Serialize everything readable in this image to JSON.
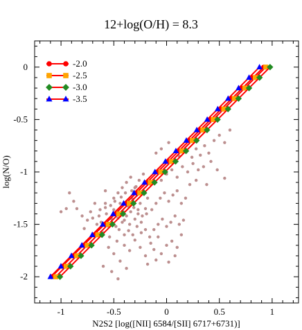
{
  "chart_data": {
    "type": "scatter",
    "title": "12+log(O/H) = 8.3",
    "xlabel": "N2S2 [log([NII] 6584/[SII] 6717+6731)]",
    "ylabel": "log(N/O)",
    "xlim": [
      -1.25,
      1.25
    ],
    "ylim": [
      -2.25,
      0.25
    ],
    "grid": false,
    "legend_position": "top-left",
    "x_ticks": [
      -1,
      -0.5,
      0,
      0.5,
      1
    ],
    "x_tick_labels": [
      "-1",
      "-0.5",
      "0",
      "0.5",
      "1"
    ],
    "y_ticks": [
      0,
      -0.5,
      -1,
      -1.5,
      -2
    ],
    "y_tick_labels": [
      "0",
      "-0.5",
      "-1",
      "-1.5",
      "-2"
    ],
    "colors": {
      "line": "#ff0000",
      "points": "#bc8f8f"
    },
    "model_y": [
      -2.0,
      -1.9,
      -1.8,
      -1.7,
      -1.6,
      -1.5,
      -1.4,
      -1.3,
      -1.2,
      -1.1,
      -1.0,
      -0.9,
      -0.8,
      -0.7,
      -0.6,
      -0.5,
      -0.4,
      -0.3,
      -0.2,
      -0.1,
      0.0
    ],
    "series": [
      {
        "name": "-2.0",
        "marker": "circle",
        "color": "#ff0000",
        "x_start": -1.09,
        "x_end": 0.92
      },
      {
        "name": "-2.5",
        "marker": "square",
        "color": "#ffa500",
        "x_start": -1.05,
        "x_end": 0.94
      },
      {
        "name": "-3.0",
        "marker": "diamond",
        "color": "#228b22",
        "x_start": -1.01,
        "x_end": 0.98
      },
      {
        "name": "-3.5",
        "marker": "triangle",
        "color": "#0000ff",
        "x_start": -1.1,
        "x_end": 0.88
      }
    ],
    "observations": {
      "name": "",
      "color": "#bc8f8f",
      "points": [
        [
          -0.62,
          -1.48
        ],
        [
          -0.55,
          -1.52
        ],
        [
          -0.48,
          -1.4
        ],
        [
          -0.41,
          -1.38
        ],
        [
          -0.58,
          -1.3
        ],
        [
          -0.52,
          -1.45
        ],
        [
          -0.45,
          -1.55
        ],
        [
          -0.38,
          -1.42
        ],
        [
          -0.6,
          -1.58
        ],
        [
          -0.66,
          -1.5
        ],
        [
          -0.7,
          -1.44
        ],
        [
          -0.5,
          -1.36
        ],
        [
          -0.44,
          -1.3
        ],
        [
          -0.36,
          -1.33
        ],
        [
          -0.32,
          -1.26
        ],
        [
          -0.28,
          -1.22
        ],
        [
          -0.25,
          -1.3
        ],
        [
          -0.22,
          -1.18
        ],
        [
          -0.18,
          -1.25
        ],
        [
          -0.15,
          -1.12
        ],
        [
          -0.54,
          -1.62
        ],
        [
          -0.47,
          -1.66
        ],
        [
          -0.4,
          -1.6
        ],
        [
          -0.35,
          -1.5
        ],
        [
          -0.3,
          -1.45
        ],
        [
          -0.27,
          -1.4
        ],
        [
          -0.24,
          -1.48
        ],
        [
          -0.2,
          -1.35
        ],
        [
          -0.57,
          -1.4
        ],
        [
          -0.63,
          -1.36
        ],
        [
          -0.68,
          -1.3
        ],
        [
          -0.72,
          -1.38
        ],
        [
          -0.75,
          -1.46
        ],
        [
          -0.78,
          -1.54
        ],
        [
          -0.8,
          -1.42
        ],
        [
          -0.85,
          -1.35
        ],
        [
          -0.88,
          -1.28
        ],
        [
          -0.92,
          -1.2
        ],
        [
          -0.95,
          -1.35
        ],
        [
          -1.0,
          -1.38
        ],
        [
          -0.5,
          -1.25
        ],
        [
          -0.46,
          -1.2
        ],
        [
          -0.42,
          -1.15
        ],
        [
          -0.38,
          -1.1
        ],
        [
          -0.34,
          -1.05
        ],
        [
          -0.3,
          -1.15
        ],
        [
          -0.26,
          -1.08
        ],
        [
          -0.22,
          -1.02
        ],
        [
          -0.55,
          -1.72
        ],
        [
          -0.5,
          -1.78
        ],
        [
          -0.44,
          -1.85
        ],
        [
          -0.4,
          -1.7
        ],
        [
          -0.35,
          -1.75
        ],
        [
          -0.3,
          -1.65
        ],
        [
          -0.25,
          -1.72
        ],
        [
          -0.2,
          -1.8
        ],
        [
          -0.15,
          -1.68
        ],
        [
          -0.12,
          -1.74
        ],
        [
          -0.08,
          -1.62
        ],
        [
          -0.05,
          -1.78
        ],
        [
          0.0,
          -1.7
        ],
        [
          0.05,
          -1.66
        ],
        [
          0.1,
          -1.72
        ],
        [
          0.14,
          -1.6
        ],
        [
          -0.6,
          -1.9
        ],
        [
          -0.52,
          -1.95
        ],
        [
          -0.46,
          -2.02
        ],
        [
          -0.38,
          -1.92
        ],
        [
          -0.18,
          -1.88
        ],
        [
          -0.1,
          -1.84
        ],
        [
          0.02,
          -1.86
        ],
        [
          0.08,
          -1.8
        ],
        [
          -0.12,
          -1.55
        ],
        [
          -0.08,
          -1.5
        ],
        [
          -0.04,
          -1.45
        ],
        [
          0.0,
          -1.52
        ],
        [
          0.04,
          -1.48
        ],
        [
          0.08,
          -1.42
        ],
        [
          0.12,
          -1.5
        ],
        [
          0.16,
          -1.46
        ],
        [
          -0.1,
          -1.3
        ],
        [
          -0.06,
          -1.25
        ],
        [
          -0.02,
          -1.2
        ],
        [
          0.02,
          -1.28
        ],
        [
          0.06,
          -1.22
        ],
        [
          0.1,
          -1.18
        ],
        [
          0.14,
          -1.3
        ],
        [
          0.18,
          -1.25
        ],
        [
          -0.05,
          -1.08
        ],
        [
          0.0,
          -1.02
        ],
        [
          0.05,
          -0.98
        ],
        [
          0.1,
          -1.05
        ],
        [
          0.15,
          -0.95
        ],
        [
          0.2,
          -1.0
        ],
        [
          0.25,
          -0.92
        ],
        [
          0.3,
          -0.98
        ],
        [
          0.12,
          -0.85
        ],
        [
          0.18,
          -0.8
        ],
        [
          0.24,
          -0.86
        ],
        [
          0.28,
          -0.78
        ],
        [
          0.32,
          -0.84
        ],
        [
          0.36,
          -0.75
        ],
        [
          0.4,
          -0.82
        ],
        [
          0.45,
          -0.7
        ],
        [
          0.5,
          -0.65
        ],
        [
          0.55,
          -0.72
        ],
        [
          0.6,
          -0.6
        ],
        [
          0.35,
          -0.95
        ],
        [
          0.42,
          -0.9
        ],
        [
          0.48,
          -0.98
        ],
        [
          0.22,
          -1.12
        ],
        [
          0.28,
          -1.08
        ],
        [
          -0.2,
          -1.55
        ],
        [
          -0.16,
          -1.62
        ],
        [
          -0.24,
          -1.58
        ],
        [
          -0.28,
          -1.52
        ],
        [
          -0.32,
          -1.6
        ],
        [
          -0.36,
          -1.56
        ],
        [
          -0.42,
          -1.48
        ],
        [
          -0.46,
          -1.44
        ],
        [
          -0.64,
          -1.42
        ],
        [
          -0.58,
          -1.34
        ],
        [
          -0.53,
          -1.32
        ],
        [
          -0.49,
          -1.28
        ],
        [
          -0.43,
          -1.24
        ],
        [
          -0.39,
          -1.2
        ],
        [
          -0.33,
          -1.18
        ],
        [
          -0.29,
          -1.14
        ],
        [
          0.55,
          -1.06
        ],
        [
          0.38,
          -1.12
        ],
        [
          -0.05,
          -0.78
        ],
        [
          -0.1,
          -0.82
        ],
        [
          0.02,
          -0.72
        ],
        [
          -0.58,
          -1.18
        ],
        [
          -0.66,
          -1.6
        ],
        [
          -0.48,
          -1.52
        ],
        [
          -0.44,
          -1.42
        ],
        [
          -0.4,
          -1.46
        ],
        [
          -0.34,
          -1.38
        ],
        [
          -0.31,
          -1.34
        ],
        [
          -0.27,
          -1.36
        ],
        [
          -0.23,
          -1.42
        ],
        [
          -0.19,
          -1.4
        ],
        [
          -0.14,
          -1.36
        ]
      ]
    }
  }
}
